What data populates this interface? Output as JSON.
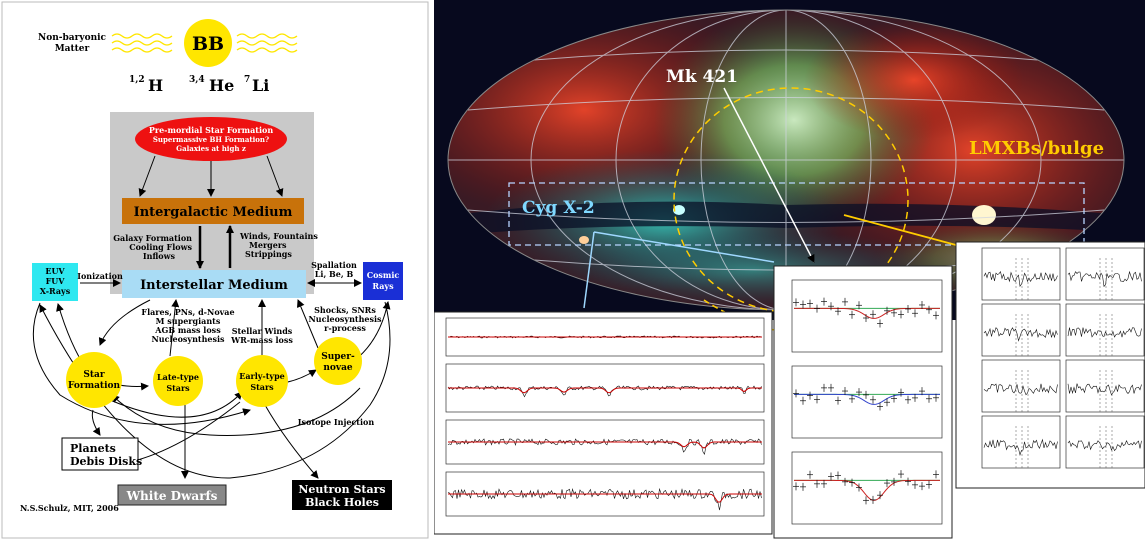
{
  "cycle": {
    "bb": "BB",
    "nonbaryonic": [
      "Non-baryonic",
      "Matter"
    ],
    "elements": {
      "h": "H",
      "h_sup": "1,2",
      "he": "He",
      "he_sup": "3,4",
      "li": "Li",
      "li_sup": "7"
    },
    "premordial": [
      "Pre-mordial Star Formation",
      "Supermassive BH Formation?",
      "Galaxies at high z"
    ],
    "igm": "Intergalactic Medium",
    "galaxy_formation": [
      "Galaxy Formation",
      "Cooling Flows",
      "Inflows"
    ],
    "winds": [
      "Winds, Fountains",
      "Mergers",
      "Strippings"
    ],
    "ism": "Interstellar Medium",
    "euv": [
      "EUV",
      "FUV",
      "X-Rays"
    ],
    "ionization": "Ionization",
    "spallation": [
      "Spallation",
      "Li, Be, B"
    ],
    "cosmic": [
      "Cosmic",
      "Rays"
    ],
    "flares": [
      "Flares, PNs, d-Novae",
      "M supergiants",
      "AGB mass loss",
      "Nucleosynthesis"
    ],
    "stellar_winds": [
      "Stellar Winds",
      "WR-mass loss"
    ],
    "shocks": [
      "Shocks, SNRs",
      "Nucleosynthesis",
      "r-process"
    ],
    "star_formation": [
      "Star",
      "Formation"
    ],
    "late_type": [
      "Late-type",
      "Stars"
    ],
    "early_type": [
      "Early-type",
      "Stars"
    ],
    "supernovae": [
      "Super-",
      "novae"
    ],
    "isotope": "Isotope Injection",
    "planets": [
      "Planets",
      "Debis Disks"
    ],
    "white_dwarfs": "White Dwarfs",
    "neutron": [
      "Neutron Stars",
      "Black Holes"
    ],
    "credit": "N.S.Schulz, MIT, 2006"
  },
  "sky": {
    "mk421": "Mk 421",
    "cygx2": "Cyg X-2",
    "lmxb": "LMXBs/bulge"
  },
  "colors": {
    "yellow": "#ffe600",
    "red_ellipse": "#ee1111",
    "igm_box": "#c8720a",
    "ism_box": "#a9dcf5",
    "euv_box": "#2ee8f0",
    "cosmic_box": "#1a2fd6",
    "gray_panel": "#c9c9c9",
    "sky_bg": "#07091e"
  }
}
